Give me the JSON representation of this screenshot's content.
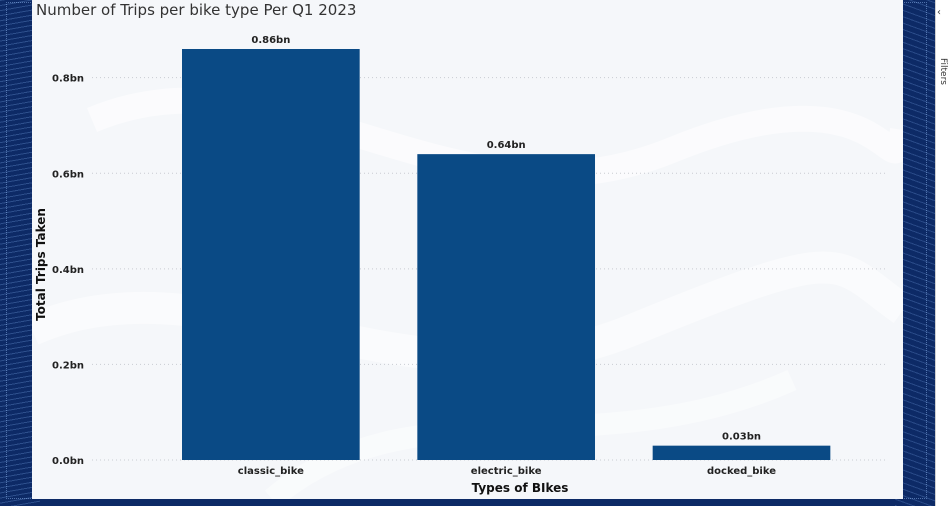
{
  "chart_data": {
    "type": "bar",
    "title": "Number of Trips per bike type Per Q1 2023",
    "xlabel": "Types of BIkes",
    "ylabel": "Total Trips Taken",
    "categories": [
      "classic_bike",
      "electric_bike",
      "docked_bike"
    ],
    "values": [
      0.86,
      0.64,
      0.03
    ],
    "data_labels": [
      "0.86bn",
      "0.64bn",
      "0.03bn"
    ],
    "unit": "bn",
    "ylim": [
      0,
      0.86
    ],
    "yticks": [
      0,
      0.2,
      0.4,
      0.6,
      0.8
    ],
    "ytick_labels": [
      "0.0bn",
      "0.2bn",
      "0.4bn",
      "0.6bn",
      "0.8bn"
    ],
    "grid": true,
    "bar_color": "#0a4a85"
  },
  "right_panel": {
    "chevron_icon": "chevron-left-icon",
    "label": "Filters"
  }
}
